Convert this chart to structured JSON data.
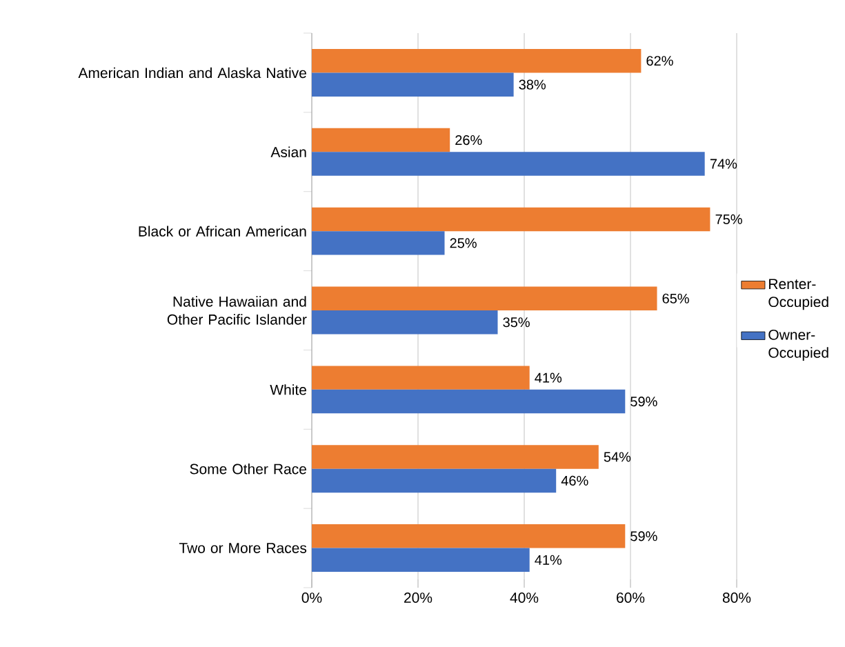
{
  "chart_data": {
    "type": "bar",
    "orientation": "horizontal",
    "categories": [
      "American Indian and Alaska Native",
      "Asian",
      "Black or African American",
      "Native Hawaiian and Other Pacific Islander",
      "White",
      "Some Other Race",
      "Two or More Races"
    ],
    "series": [
      {
        "name": "Renter-Occupied",
        "color": "#ed7d31",
        "values": [
          62,
          26,
          75,
          65,
          41,
          54,
          59
        ],
        "value_labels": [
          "62%",
          "26%",
          "75%",
          "65%",
          "41%",
          "54%",
          "59%"
        ]
      },
      {
        "name": "Owner-Occupied",
        "color": "#4472c4",
        "values": [
          38,
          74,
          25,
          35,
          59,
          46,
          41
        ],
        "value_labels": [
          "38%",
          "74%",
          "25%",
          "35%",
          "59%",
          "46%",
          "41%"
        ]
      }
    ],
    "xlim": [
      0,
      80
    ],
    "xticks": [
      {
        "value": 0,
        "label": "0%"
      },
      {
        "value": 20,
        "label": "20%"
      },
      {
        "value": 40,
        "label": "40%"
      },
      {
        "value": 60,
        "label": "60%"
      },
      {
        "value": 80,
        "label": "80%"
      }
    ],
    "grid": "x",
    "legend": "right"
  }
}
